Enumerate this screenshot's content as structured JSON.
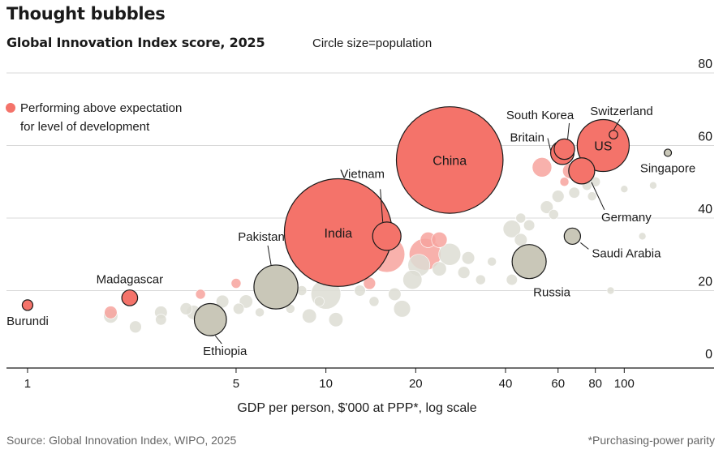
{
  "title": "Thought bubbles",
  "subtitle": "Global Innovation Index score, 2025",
  "size_note": "Circle size=population",
  "source": "Source: Global Innovation Index, WIPO, 2025",
  "footnote": "*Purchasing-power parity",
  "colors": {
    "highlight": "#f4736a",
    "highlight_light": "#f7a39d",
    "other": "#c9c7b8",
    "other_light": "#ddddd3",
    "grid": "#d9d9d9",
    "axis": "#1a1a1a"
  },
  "chart_data": {
    "type": "scatter",
    "title": "Global Innovation Index score, 2025",
    "xlabel": "GDP per person, $'000 at PPP*, log scale",
    "ylabel": "",
    "x_scale": "log",
    "xlim": [
      0.85,
      200
    ],
    "ylim": [
      0,
      80
    ],
    "x_ticks": [
      1,
      5,
      10,
      20,
      40,
      60,
      80,
      100
    ],
    "y_ticks": [
      0,
      20,
      40,
      60,
      80
    ],
    "grid": "horizontal",
    "legend": {
      "position": "top-left",
      "entries": [
        {
          "label_lines": [
            "Performing above expectation",
            "for level of development"
          ],
          "color": "#f4736a"
        }
      ]
    },
    "size_encoding": "population (millions)",
    "labeled_points": [
      {
        "label": "Burundi",
        "x": 1.0,
        "y": 16,
        "pop": 14,
        "above": true,
        "label_pos": "below"
      },
      {
        "label": "Madagascar",
        "x": 2.2,
        "y": 18,
        "pop": 31,
        "above": true,
        "label_pos": "above"
      },
      {
        "label": "Ethiopia",
        "x": 4.1,
        "y": 12,
        "pop": 128,
        "above": false,
        "label_pos": "below"
      },
      {
        "label": "Pakistan",
        "x": 6.8,
        "y": 21,
        "pop": 240,
        "above": false,
        "label_pos": "above"
      },
      {
        "label": "India",
        "x": 11,
        "y": 36,
        "pop": 1440,
        "above": true,
        "label_pos": "inside"
      },
      {
        "label": "Vietnam",
        "x": 16,
        "y": 35,
        "pop": 100,
        "above": true,
        "label_pos": "above"
      },
      {
        "label": "China",
        "x": 26,
        "y": 56,
        "pop": 1410,
        "above": true,
        "label_pos": "inside"
      },
      {
        "label": "Russia",
        "x": 48,
        "y": 28,
        "pop": 144,
        "above": false,
        "label_pos": "below"
      },
      {
        "label": "Saudi Arabia",
        "x": 67,
        "y": 35,
        "pop": 33,
        "above": false,
        "label_pos": "right"
      },
      {
        "label": "Britain",
        "x": 62,
        "y": 58,
        "pop": 68,
        "above": true,
        "label_pos": "left"
      },
      {
        "label": "South Korea",
        "x": 63,
        "y": 59,
        "pop": 52,
        "above": true,
        "label_pos": "above"
      },
      {
        "label": "Germany",
        "x": 72,
        "y": 53,
        "pop": 84,
        "above": true,
        "label_pos": "below"
      },
      {
        "label": "US",
        "x": 85,
        "y": 60,
        "pop": 335,
        "above": true,
        "label_pos": "inside"
      },
      {
        "label": "Switzerland",
        "x": 92,
        "y": 63,
        "pop": 9,
        "above": true,
        "label_pos": "above"
      },
      {
        "label": "Singapore",
        "x": 140,
        "y": 58,
        "pop": 6,
        "above": false,
        "label_pos": "below"
      }
    ],
    "other_points": [
      {
        "x": 1.9,
        "y": 14,
        "pop": 20,
        "above": true
      },
      {
        "x": 1.9,
        "y": 13,
        "pop": 25,
        "above": false
      },
      {
        "x": 2.3,
        "y": 10,
        "pop": 18,
        "above": false
      },
      {
        "x": 2.8,
        "y": 14,
        "pop": 20,
        "above": false
      },
      {
        "x": 2.8,
        "y": 12,
        "pop": 15,
        "above": false
      },
      {
        "x": 3.4,
        "y": 15,
        "pop": 18,
        "above": false
      },
      {
        "x": 3.8,
        "y": 19,
        "pop": 12,
        "above": true
      },
      {
        "x": 3.6,
        "y": 14,
        "pop": 25,
        "above": false
      },
      {
        "x": 4.5,
        "y": 17,
        "pop": 20,
        "above": false
      },
      {
        "x": 5.0,
        "y": 22,
        "pop": 12,
        "above": true
      },
      {
        "x": 5.1,
        "y": 15,
        "pop": 15,
        "above": false
      },
      {
        "x": 5.4,
        "y": 17,
        "pop": 22,
        "above": false
      },
      {
        "x": 6.0,
        "y": 14,
        "pop": 10,
        "above": false
      },
      {
        "x": 7.2,
        "y": 18,
        "pop": 18,
        "above": false
      },
      {
        "x": 7.6,
        "y": 15,
        "pop": 10,
        "above": false
      },
      {
        "x": 8.3,
        "y": 20,
        "pop": 12,
        "above": false
      },
      {
        "x": 8.8,
        "y": 13,
        "pop": 25,
        "above": false
      },
      {
        "x": 9.5,
        "y": 17,
        "pop": 12,
        "above": false
      },
      {
        "x": 10.0,
        "y": 19,
        "pop": 110,
        "above": false
      },
      {
        "x": 10.8,
        "y": 12,
        "pop": 25,
        "above": false
      },
      {
        "x": 12.5,
        "y": 24,
        "pop": 12,
        "above": true
      },
      {
        "x": 13.0,
        "y": 20,
        "pop": 15,
        "above": false
      },
      {
        "x": 14.0,
        "y": 22,
        "pop": 18,
        "above": true
      },
      {
        "x": 14.5,
        "y": 17,
        "pop": 12,
        "above": false
      },
      {
        "x": 16.0,
        "y": 30,
        "pop": 160,
        "above": true
      },
      {
        "x": 17.0,
        "y": 19,
        "pop": 20,
        "above": false
      },
      {
        "x": 18.0,
        "y": 15,
        "pop": 35,
        "above": false
      },
      {
        "x": 19.5,
        "y": 23,
        "pop": 45,
        "above": false
      },
      {
        "x": 20.5,
        "y": 27,
        "pop": 60,
        "above": false
      },
      {
        "x": 21.5,
        "y": 30,
        "pop": 125,
        "above": true
      },
      {
        "x": 22.0,
        "y": 34,
        "pop": 30,
        "above": true
      },
      {
        "x": 24.0,
        "y": 26,
        "pop": 25,
        "above": false
      },
      {
        "x": 26.0,
        "y": 30,
        "pop": 60,
        "above": false
      },
      {
        "x": 24.0,
        "y": 34,
        "pop": 30,
        "above": true
      },
      {
        "x": 29.0,
        "y": 25,
        "pop": 18,
        "above": false
      },
      {
        "x": 30.0,
        "y": 29,
        "pop": 20,
        "above": false
      },
      {
        "x": 33.0,
        "y": 23,
        "pop": 12,
        "above": false
      },
      {
        "x": 36.0,
        "y": 28,
        "pop": 10,
        "above": false
      },
      {
        "x": 42.0,
        "y": 37,
        "pop": 38,
        "above": false
      },
      {
        "x": 45.0,
        "y": 34,
        "pop": 20,
        "above": false
      },
      {
        "x": 45.0,
        "y": 40,
        "pop": 12,
        "above": false
      },
      {
        "x": 48.0,
        "y": 38,
        "pop": 15,
        "above": false
      },
      {
        "x": 53.0,
        "y": 54,
        "pop": 47,
        "above": true
      },
      {
        "x": 55.0,
        "y": 43,
        "pop": 20,
        "above": false
      },
      {
        "x": 58.0,
        "y": 41,
        "pop": 12,
        "above": false
      },
      {
        "x": 60.0,
        "y": 46,
        "pop": 18,
        "above": false
      },
      {
        "x": 63.0,
        "y": 50,
        "pop": 10,
        "above": true
      },
      {
        "x": 66.0,
        "y": 53,
        "pop": 30,
        "above": true
      },
      {
        "x": 68.0,
        "y": 47,
        "pop": 15,
        "above": false
      },
      {
        "x": 75.0,
        "y": 49,
        "pop": 12,
        "above": false
      },
      {
        "x": 78.0,
        "y": 46,
        "pop": 10,
        "above": false
      },
      {
        "x": 80.0,
        "y": 50,
        "pop": 12,
        "above": false
      },
      {
        "x": 100.0,
        "y": 48,
        "pop": 6,
        "above": false
      },
      {
        "x": 125.0,
        "y": 49,
        "pop": 5,
        "above": false
      },
      {
        "x": 42.0,
        "y": 23,
        "pop": 15,
        "above": false
      },
      {
        "x": 50.0,
        "y": 27,
        "pop": 10,
        "above": false
      },
      {
        "x": 90.0,
        "y": 20,
        "pop": 5,
        "above": false
      },
      {
        "x": 115.0,
        "y": 35,
        "pop": 5,
        "above": false
      }
    ]
  }
}
